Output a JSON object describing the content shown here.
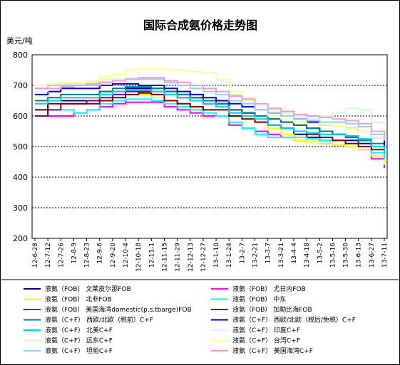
{
  "chart_data": {
    "type": "line",
    "title": "国际合成氨价格走势图",
    "ylabel": "美元/吨",
    "xlabel": "",
    "ylim": [
      200,
      800
    ],
    "yticks": [
      200,
      300,
      400,
      500,
      600,
      700,
      800
    ],
    "grid": "horizontal-dotted",
    "legend_position": "bottom",
    "x": [
      "12-6-28",
      "12-7-12",
      "12-7-26",
      "12-8-9",
      "12-8-23",
      "12-9-6",
      "12-9-20",
      "12-10-4",
      "12-10-18",
      "12-11-1",
      "12-11-15",
      "12-11-29",
      "12-12-13",
      "12-12-27",
      "13-1-10",
      "13-1-24",
      "13-2-7",
      "13-2-21",
      "13-3-7",
      "13-3-21",
      "13-4-4",
      "13-4-18",
      "13-5-2",
      "13-5-16",
      "13-5-30",
      "13-6-13",
      "13-6-27",
      "13-7-11"
    ],
    "series": [
      {
        "name": "液氨（FOB） 文莱皮尔那FOB",
        "color": "#000080",
        "values": [
          600,
          650,
          650,
          650,
          650,
          680,
          680,
          690,
          690,
          690,
          680,
          670,
          660,
          640,
          640,
          620,
          610,
          600,
          570,
          560,
          540,
          530,
          520,
          520,
          520,
          510,
          500,
          500
        ]
      },
      {
        "name": "液氨（FOB） 尤日内FOB",
        "color": "#ff00ff",
        "values": [
          600,
          600,
          600,
          610,
          620,
          630,
          640,
          645,
          645,
          645,
          630,
          620,
          610,
          600,
          600,
          570,
          560,
          550,
          540,
          530,
          520,
          515,
          510,
          505,
          500,
          490,
          460,
          430
        ]
      },
      {
        "name": "液氨（FOB） 北非FOB",
        "color": "#ffff00",
        "values": [
          640,
          650,
          660,
          660,
          660,
          670,
          670,
          670,
          670,
          660,
          650,
          640,
          630,
          620,
          620,
          600,
          590,
          580,
          560,
          540,
          520,
          515,
          510,
          505,
          500,
          490,
          470,
          440
        ]
      },
      {
        "name": "液氨（FOB） 中东",
        "color": "#00ffff",
        "values": [
          620,
          620,
          620,
          610,
          620,
          640,
          650,
          655,
          655,
          650,
          640,
          630,
          620,
          610,
          600,
          580,
          560,
          540,
          530,
          530,
          530,
          525,
          520,
          520,
          510,
          500,
          480,
          460
        ]
      },
      {
        "name": "液氨（FOB） 美国海湾domestic(p.s.tbarge)FOB",
        "color": "#800080",
        "values": [
          600,
          620,
          640,
          640,
          650,
          660,
          670,
          680,
          680,
          680,
          670,
          660,
          650,
          640,
          640,
          620,
          610,
          600,
          590,
          580,
          570,
          560,
          550,
          540,
          530,
          520,
          500,
          480
        ]
      },
      {
        "name": "液氨（FOB） 加勒比海FOB",
        "color": "#800000",
        "values": [
          620,
          640,
          640,
          640,
          640,
          650,
          660,
          670,
          675,
          670,
          650,
          640,
          630,
          620,
          620,
          600,
          590,
          580,
          570,
          560,
          550,
          540,
          530,
          520,
          510,
          500,
          490,
          480
        ]
      },
      {
        "name": "液氨（C+F） 西欧/北欧（税前）C+F",
        "color": "#008080",
        "values": [
          650,
          660,
          670,
          670,
          670,
          680,
          690,
          695,
          695,
          690,
          680,
          670,
          660,
          650,
          640,
          620,
          610,
          600,
          590,
          580,
          570,
          560,
          550,
          540,
          530,
          520,
          510,
          500
        ]
      },
      {
        "name": "液氨（C+F） 西欧/北欧（税后/免税）C+F",
        "color": "#0000ff",
        "values": [
          670,
          680,
          690,
          690,
          690,
          700,
          705,
          705,
          700,
          700,
          690,
          680,
          670,
          660,
          650,
          640,
          630,
          620,
          610,
          600,
          590,
          580,
          570,
          565,
          560,
          550,
          530,
          490
        ]
      },
      {
        "name": "液氨（C+F） 北美C+F",
        "color": "#00ccff",
        "values": [
          640,
          650,
          660,
          660,
          660,
          670,
          680,
          685,
          685,
          680,
          670,
          660,
          650,
          640,
          630,
          610,
          600,
          590,
          570,
          560,
          550,
          545,
          540,
          540,
          535,
          525,
          500,
          480
        ]
      },
      {
        "name": "液氨（C+F） 印度C+F",
        "color": "#ccffff",
        "values": [
          680,
          690,
          700,
          700,
          705,
          710,
          715,
          720,
          720,
          720,
          715,
          710,
          700,
          690,
          680,
          670,
          660,
          640,
          620,
          610,
          600,
          590,
          580,
          580,
          575,
          565,
          540,
          520
        ]
      },
      {
        "name": "液氨（C+F） 远东C+F",
        "color": "#ccffcc",
        "values": [
          690,
          700,
          705,
          705,
          710,
          720,
          720,
          725,
          725,
          720,
          715,
          710,
          700,
          690,
          680,
          670,
          660,
          640,
          620,
          610,
          600,
          600,
          600,
          610,
          625,
          620,
          580,
          570
        ]
      },
      {
        "name": "液氨（C+F） 台湾C+F",
        "color": "#ffff99",
        "values": [
          700,
          705,
          710,
          710,
          715,
          730,
          735,
          750,
          755,
          755,
          750,
          750,
          745,
          740,
          720,
          680,
          650,
          620,
          600,
          590,
          580,
          575,
          570,
          565,
          560,
          550,
          530,
          520
        ]
      },
      {
        "name": "液氨（C+F） 坦帕C+F",
        "color": "#99ccff",
        "values": [
          690,
          700,
          700,
          700,
          700,
          710,
          715,
          720,
          720,
          720,
          710,
          700,
          690,
          680,
          670,
          650,
          640,
          620,
          610,
          600,
          590,
          585,
          580,
          580,
          575,
          565,
          540,
          520
        ]
      },
      {
        "name": "液氨（C+F） 美国海湾C+F",
        "color": "#ff99cc",
        "values": [
          690,
          690,
          695,
          700,
          705,
          710,
          715,
          720,
          725,
          725,
          715,
          710,
          700,
          690,
          680,
          665,
          655,
          640,
          625,
          615,
          605,
          600,
          595,
          590,
          585,
          575,
          550,
          530
        ]
      }
    ]
  }
}
